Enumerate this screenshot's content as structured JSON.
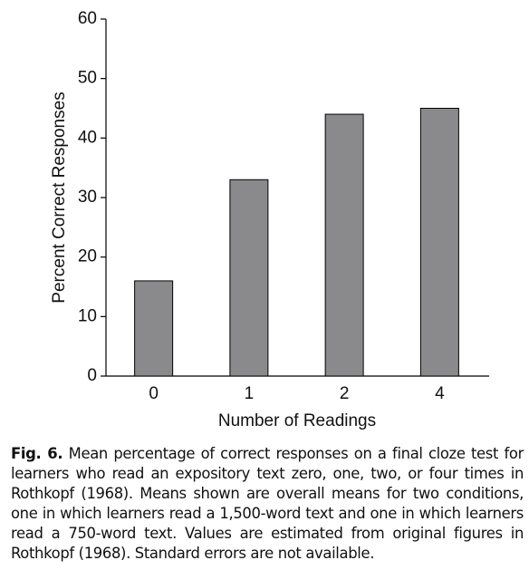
{
  "chart_data": {
    "type": "bar",
    "categories": [
      "0",
      "1",
      "2",
      "4"
    ],
    "values": [
      16,
      33,
      44,
      45
    ],
    "color": "#8a8a8c",
    "ylim": [
      0,
      60
    ],
    "yticks": [
      0,
      10,
      20,
      30,
      40,
      50,
      60
    ],
    "grid": false,
    "xlabel": "Number of Readings",
    "ylabel": "Percent Correct Responses"
  },
  "caption": {
    "label": "Fig. 6.",
    "text": "Mean percentage of correct responses on a final cloze test for learners who read an expository text zero, one, two, or four times in Rothkopf (1968). Means shown are overall means for two conditions, one in which learners read a 1,500-word text and one in which learners read a 750-word text. Values are estimated from original figures in Rothkopf (1968). Standard errors are not available."
  }
}
